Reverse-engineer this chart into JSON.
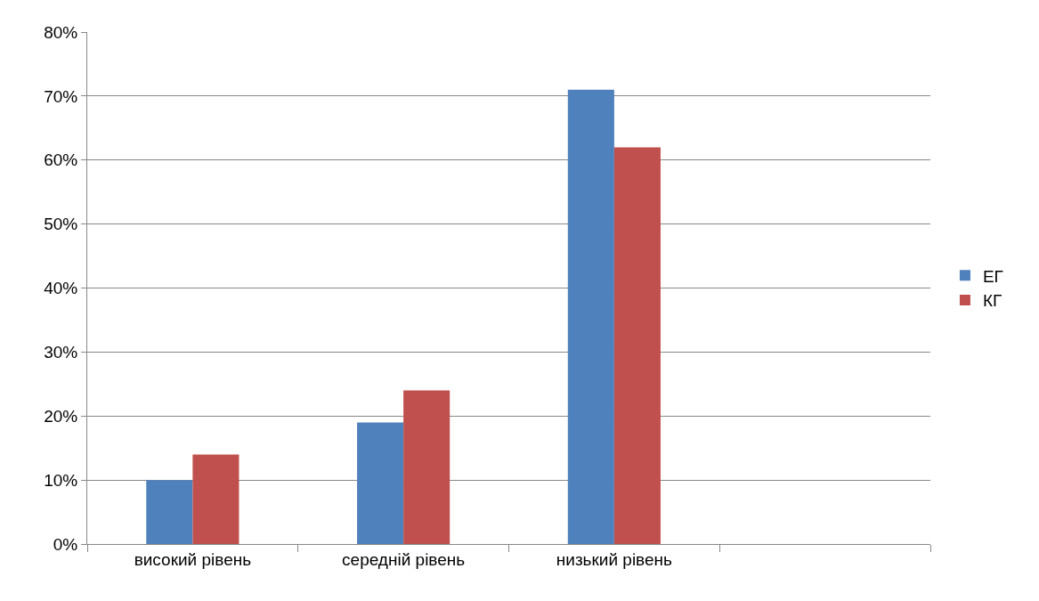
{
  "chart_data": {
    "type": "bar",
    "categories": [
      "високий рівень",
      "середній рівень",
      "низький рівень",
      null
    ],
    "series": [
      {
        "name": "ЕГ",
        "color": "#4f81bd",
        "values": [
          10,
          19,
          71,
          null
        ]
      },
      {
        "name": "КГ",
        "color": "#c0504d",
        "values": [
          14,
          24,
          62,
          null
        ]
      }
    ],
    "ylim": [
      0,
      80
    ],
    "yticks": [
      {
        "value": 0,
        "label": "0%"
      },
      {
        "value": 10,
        "label": "10%"
      },
      {
        "value": 20,
        "label": "20%"
      },
      {
        "value": 30,
        "label": "30%"
      },
      {
        "value": 40,
        "label": "40%"
      },
      {
        "value": 50,
        "label": "50%"
      },
      {
        "value": 60,
        "label": "60%"
      },
      {
        "value": 70,
        "label": "70%"
      },
      {
        "value": 80,
        "label": "80%"
      }
    ],
    "grid": "y",
    "legend": "right"
  }
}
